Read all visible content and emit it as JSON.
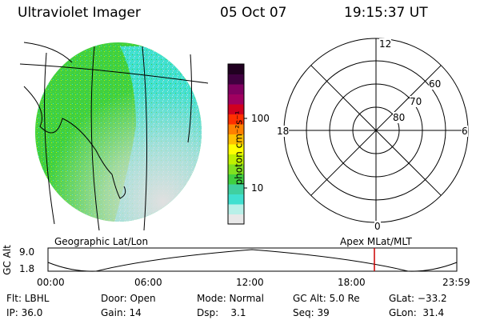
{
  "header": {
    "instrument": "Ultraviolet Imager",
    "date": "05 Oct 07",
    "time": "19:15:37 UT"
  },
  "left_panel": {
    "label": "Geographic Lat/Lon"
  },
  "right_panel": {
    "label": "Apex MLat/MLT",
    "mlt_labels": {
      "top": "12",
      "left": "18",
      "right": "6",
      "bottom": "0"
    },
    "lat_labels": [
      "60",
      "70",
      "80"
    ]
  },
  "colorbar": {
    "unit_label": "photon cm⁻²s⁻¹",
    "ticks": [
      "100",
      "10"
    ],
    "colors": [
      "#e8e8e8",
      "#b8f0e8",
      "#40e0d0",
      "#40d0a0",
      "#40d040",
      "#80e020",
      "#c0f000",
      "#ffff00",
      "#ffc000",
      "#ff8000",
      "#ff3000",
      "#d00020",
      "#a00060",
      "#800060",
      "#400040",
      "#200020"
    ]
  },
  "altitude_plot": {
    "ylabel": "GC Alt",
    "yticks": [
      "9.0",
      "1.8"
    ],
    "xticks": [
      "00:00",
      "06:00",
      "12:00",
      "18:00",
      "23:59"
    ],
    "marker_color": "#cc0000"
  },
  "footer": {
    "row1": {
      "filter": "Flt: LBHL",
      "door": "Door: Open",
      "mode": "Mode: Normal",
      "gc_alt": "GC Alt: 5.0 Re",
      "glat": "GLat: −33.2"
    },
    "row2": {
      "ip": "IP: 36.0",
      "gain": "Gain: 14",
      "dsp": "Dsp:    3.1",
      "seq": "Seq: 39",
      "glon": "GLon:  31.4"
    }
  },
  "colors": {
    "disk_green": "#40d040",
    "disk_cyan": "#40e0d0",
    "disk_gray": "#e0e0e0"
  }
}
